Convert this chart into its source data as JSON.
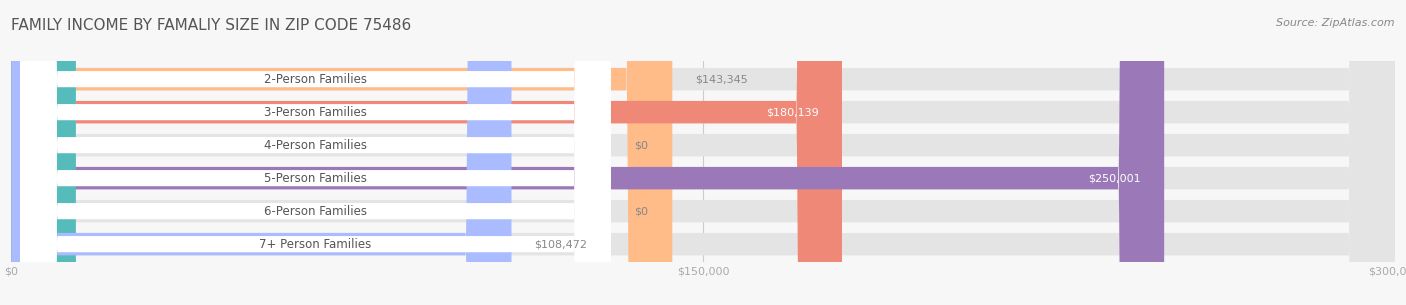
{
  "title": "FAMILY INCOME BY FAMALIY SIZE IN ZIP CODE 75486",
  "source": "Source: ZipAtlas.com",
  "categories": [
    "2-Person Families",
    "3-Person Families",
    "4-Person Families",
    "5-Person Families",
    "6-Person Families",
    "7+ Person Families"
  ],
  "values": [
    143345,
    180139,
    0,
    250001,
    0,
    108472
  ],
  "bar_colors": [
    "#FFBB88",
    "#F08878",
    "#AABCEE",
    "#9B79B8",
    "#55BCBB",
    "#AABCFF"
  ],
  "value_labels": [
    "$143,345",
    "$180,139",
    "$0",
    "$250,001",
    "$0",
    "$108,472"
  ],
  "value_label_inside": [
    false,
    true,
    false,
    true,
    false,
    false
  ],
  "xmax": 300000,
  "xticklabels": [
    "$0",
    "$150,000",
    "$300,000"
  ],
  "background_color": "#f7f7f7",
  "bar_bg_color": "#e4e4e4",
  "bar_height": 0.68,
  "title_fontsize": 11,
  "label_fontsize": 8.5,
  "value_fontsize": 8.0,
  "source_fontsize": 8,
  "label_pill_color": "white",
  "label_text_color": "#555555",
  "value_color_outside": "#888888",
  "value_color_inside": "white",
  "grid_color": "#cccccc",
  "tick_color": "#aaaaaa"
}
